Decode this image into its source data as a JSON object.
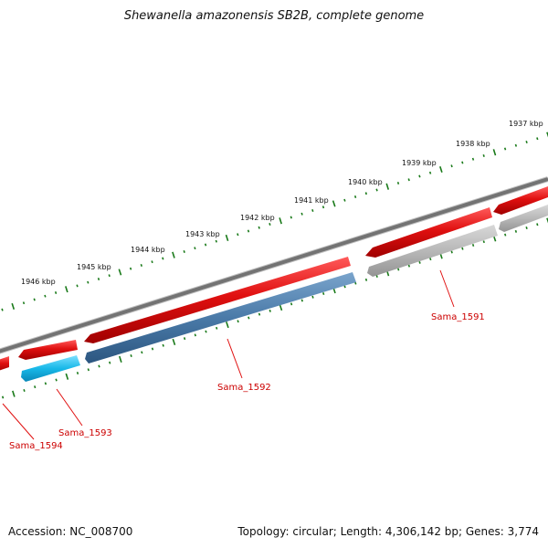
{
  "title": "Shewanella amazonensis SB2B, complete genome",
  "footer": {
    "accession": "Accession: NC_008700",
    "summary": "Topology: circular; Length: 4,306,142 bp; Genes: 3,774"
  },
  "colors": {
    "backbone": "#7a7a7a",
    "tick": "#1a7a1a",
    "forward_gene": "#e01010",
    "reverse_gene_selected": "#4a7aa8",
    "reverse_gene_other": "#b8b8b8",
    "reverse_gene_cyan": "#18b8e8",
    "label": "#cc0000"
  },
  "kbp_labels": [
    "1937 kbp",
    "1938 kbp",
    "1939 kbp",
    "1940 kbp",
    "1941 kbp",
    "1942 kbp",
    "1943 kbp",
    "1944 kbp",
    "1945 kbp",
    "1946 kbp"
  ],
  "genes": [
    {
      "label": "Sama_1591",
      "strand": "reverse",
      "color": "#b8b8b8"
    },
    {
      "label": "Sama_1592",
      "strand": "reverse",
      "color": "#4a7aa8"
    },
    {
      "label": "Sama_1593",
      "strand": "reverse",
      "color": "#18b8e8"
    },
    {
      "label": "Sama_1594",
      "strand": "forward",
      "color": "#e01010"
    }
  ]
}
